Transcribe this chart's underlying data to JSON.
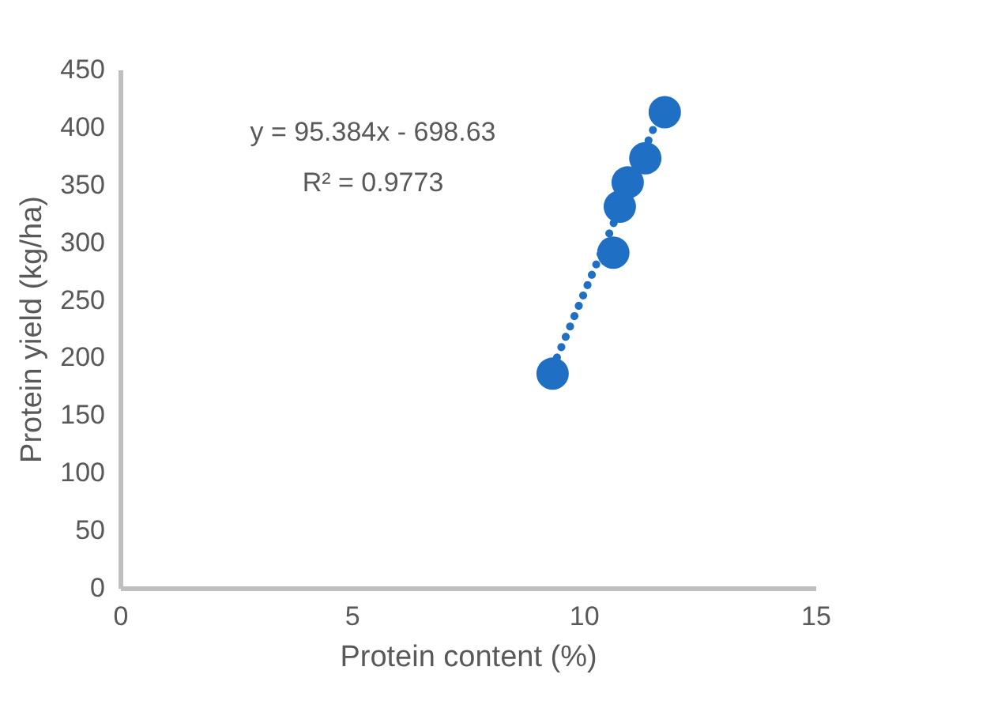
{
  "chart_data": {
    "type": "scatter",
    "xlabel": "Protein content (%)",
    "ylabel": "Protein yield (kg/ha)",
    "xlim": [
      0,
      15
    ],
    "xticks": [
      0,
      5,
      10,
      15
    ],
    "ylim": [
      0,
      450
    ],
    "yticks": [
      0,
      50,
      100,
      150,
      200,
      250,
      300,
      350,
      400,
      450
    ],
    "grid": false,
    "series": [
      {
        "color": "#1f6fc5",
        "marker": "circle",
        "x": [
          9.33,
          10.64,
          10.78,
          10.95,
          11.33,
          11.75
        ],
        "values": [
          186,
          291,
          331,
          352,
          373,
          413
        ]
      },
      {
        "type": "line",
        "line_style": "dotted",
        "marker": "none",
        "color": "#1f6fc5",
        "x": [
          9.33,
          11.75
        ],
        "values": [
          191,
          422
        ]
      }
    ],
    "annotations": [
      "y = 95.384x - 698.63",
      "R² = 0.9773"
    ]
  }
}
